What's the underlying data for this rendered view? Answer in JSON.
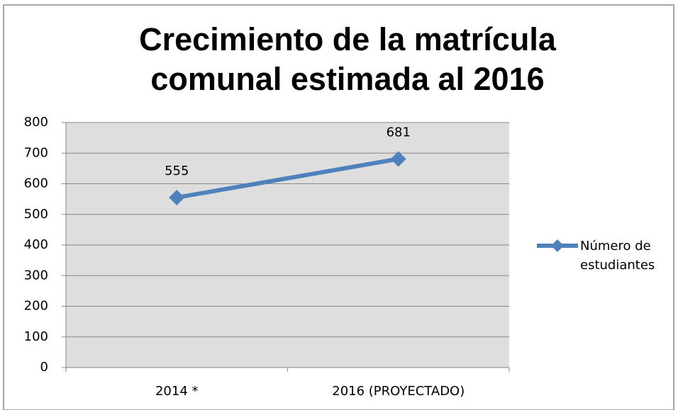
{
  "chart_data": {
    "type": "line",
    "title": "Crecimiento de la matrícula comunal estimada al 2016",
    "categories": [
      "2014 *",
      "2016 (PROYECTADO)"
    ],
    "series": [
      {
        "name": "Número de estudiantes",
        "color": "#4f81bd",
        "values": [
          555,
          681
        ]
      }
    ],
    "ylim": [
      0,
      800
    ],
    "yticks": [
      0,
      100,
      200,
      300,
      400,
      500,
      600,
      700,
      800
    ],
    "grid": true,
    "legend": "right"
  }
}
